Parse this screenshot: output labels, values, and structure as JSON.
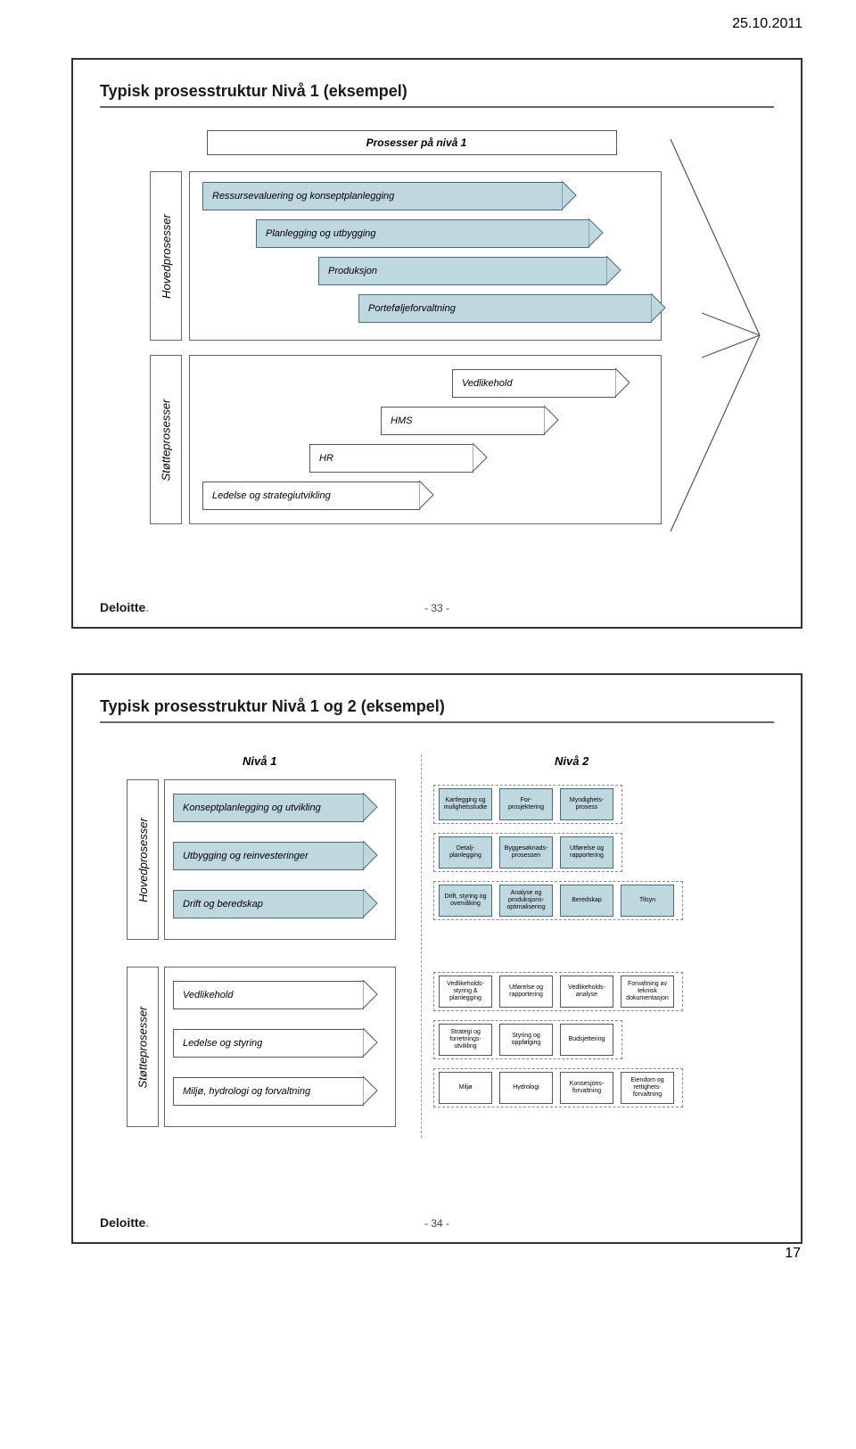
{
  "meta": {
    "date": "25.10.2011",
    "page_footer": "17"
  },
  "colors": {
    "arrow_fill_blue": "#bfd8e0",
    "arrow_fill_white": "#ffffff",
    "arrow_border": "#4a6a7a",
    "white_border": "#555555"
  },
  "slide1": {
    "title": "Typisk prosesstruktur Nivå 1 (eksempel)",
    "top_label": "Prosesser på nivå 1",
    "vlabels": [
      "Hovedprosesser",
      "Støtteprosesser"
    ],
    "main_arrows": [
      "Ressursevaluering og konseptplanlegging",
      "Planlegging og utbygging",
      "Produksjon",
      "Porteføljeforvaltning"
    ],
    "support_arrows": [
      "Vedlikehold",
      "HMS",
      "HR",
      "Ledelse og strategiutvikling"
    ],
    "logo": "Deloitte",
    "page": "- 33 -"
  },
  "slide2": {
    "title": "Typisk prosesstruktur Nivå 1 og 2 (eksempel)",
    "vlabels": [
      "Hovedprosesser",
      "Støtteprosesser"
    ],
    "col_headers": [
      "Nivå 1",
      "Nivå 2"
    ],
    "main_arrows": [
      "Konseptplanlegging og utvikling",
      "Utbygging og reinvesteringer",
      "Drift og beredskap"
    ],
    "support_arrows": [
      "Vedlikehold",
      "Ledelse og styring",
      "Miljø, hydrologi og forvaltning"
    ],
    "grid": {
      "rowA": [
        "Kartlegging og mulighetsstudie",
        "For-prosjektering",
        "Myndighets-prosess",
        ""
      ],
      "rowB": [
        "Detalj-planlegging",
        "Byggesøknads-prosessen",
        "Utførelse og rapportering",
        ""
      ],
      "rowC": [
        "Drift, styring og overvåking",
        "Analyse og produksjons-optimalisering",
        "Beredskap",
        "Tilsyn"
      ],
      "rowD": [
        "Vedlikeholds-styring & planlegging",
        "Utførelse og rapportering",
        "Vedlikeholds-analyse",
        "Forvaltning av teknisk dokumentasjon"
      ],
      "rowE": [
        "Strategi og forretnings-utvikling",
        "Styring og oppfølging",
        "Budsjettering",
        ""
      ],
      "rowF": [
        "Miljø",
        "Hydrologi",
        "Konsesjons-forvaltning",
        "Eiendom og rettighets-forvaltning"
      ]
    },
    "logo": "Deloitte",
    "page": "- 34 -"
  }
}
